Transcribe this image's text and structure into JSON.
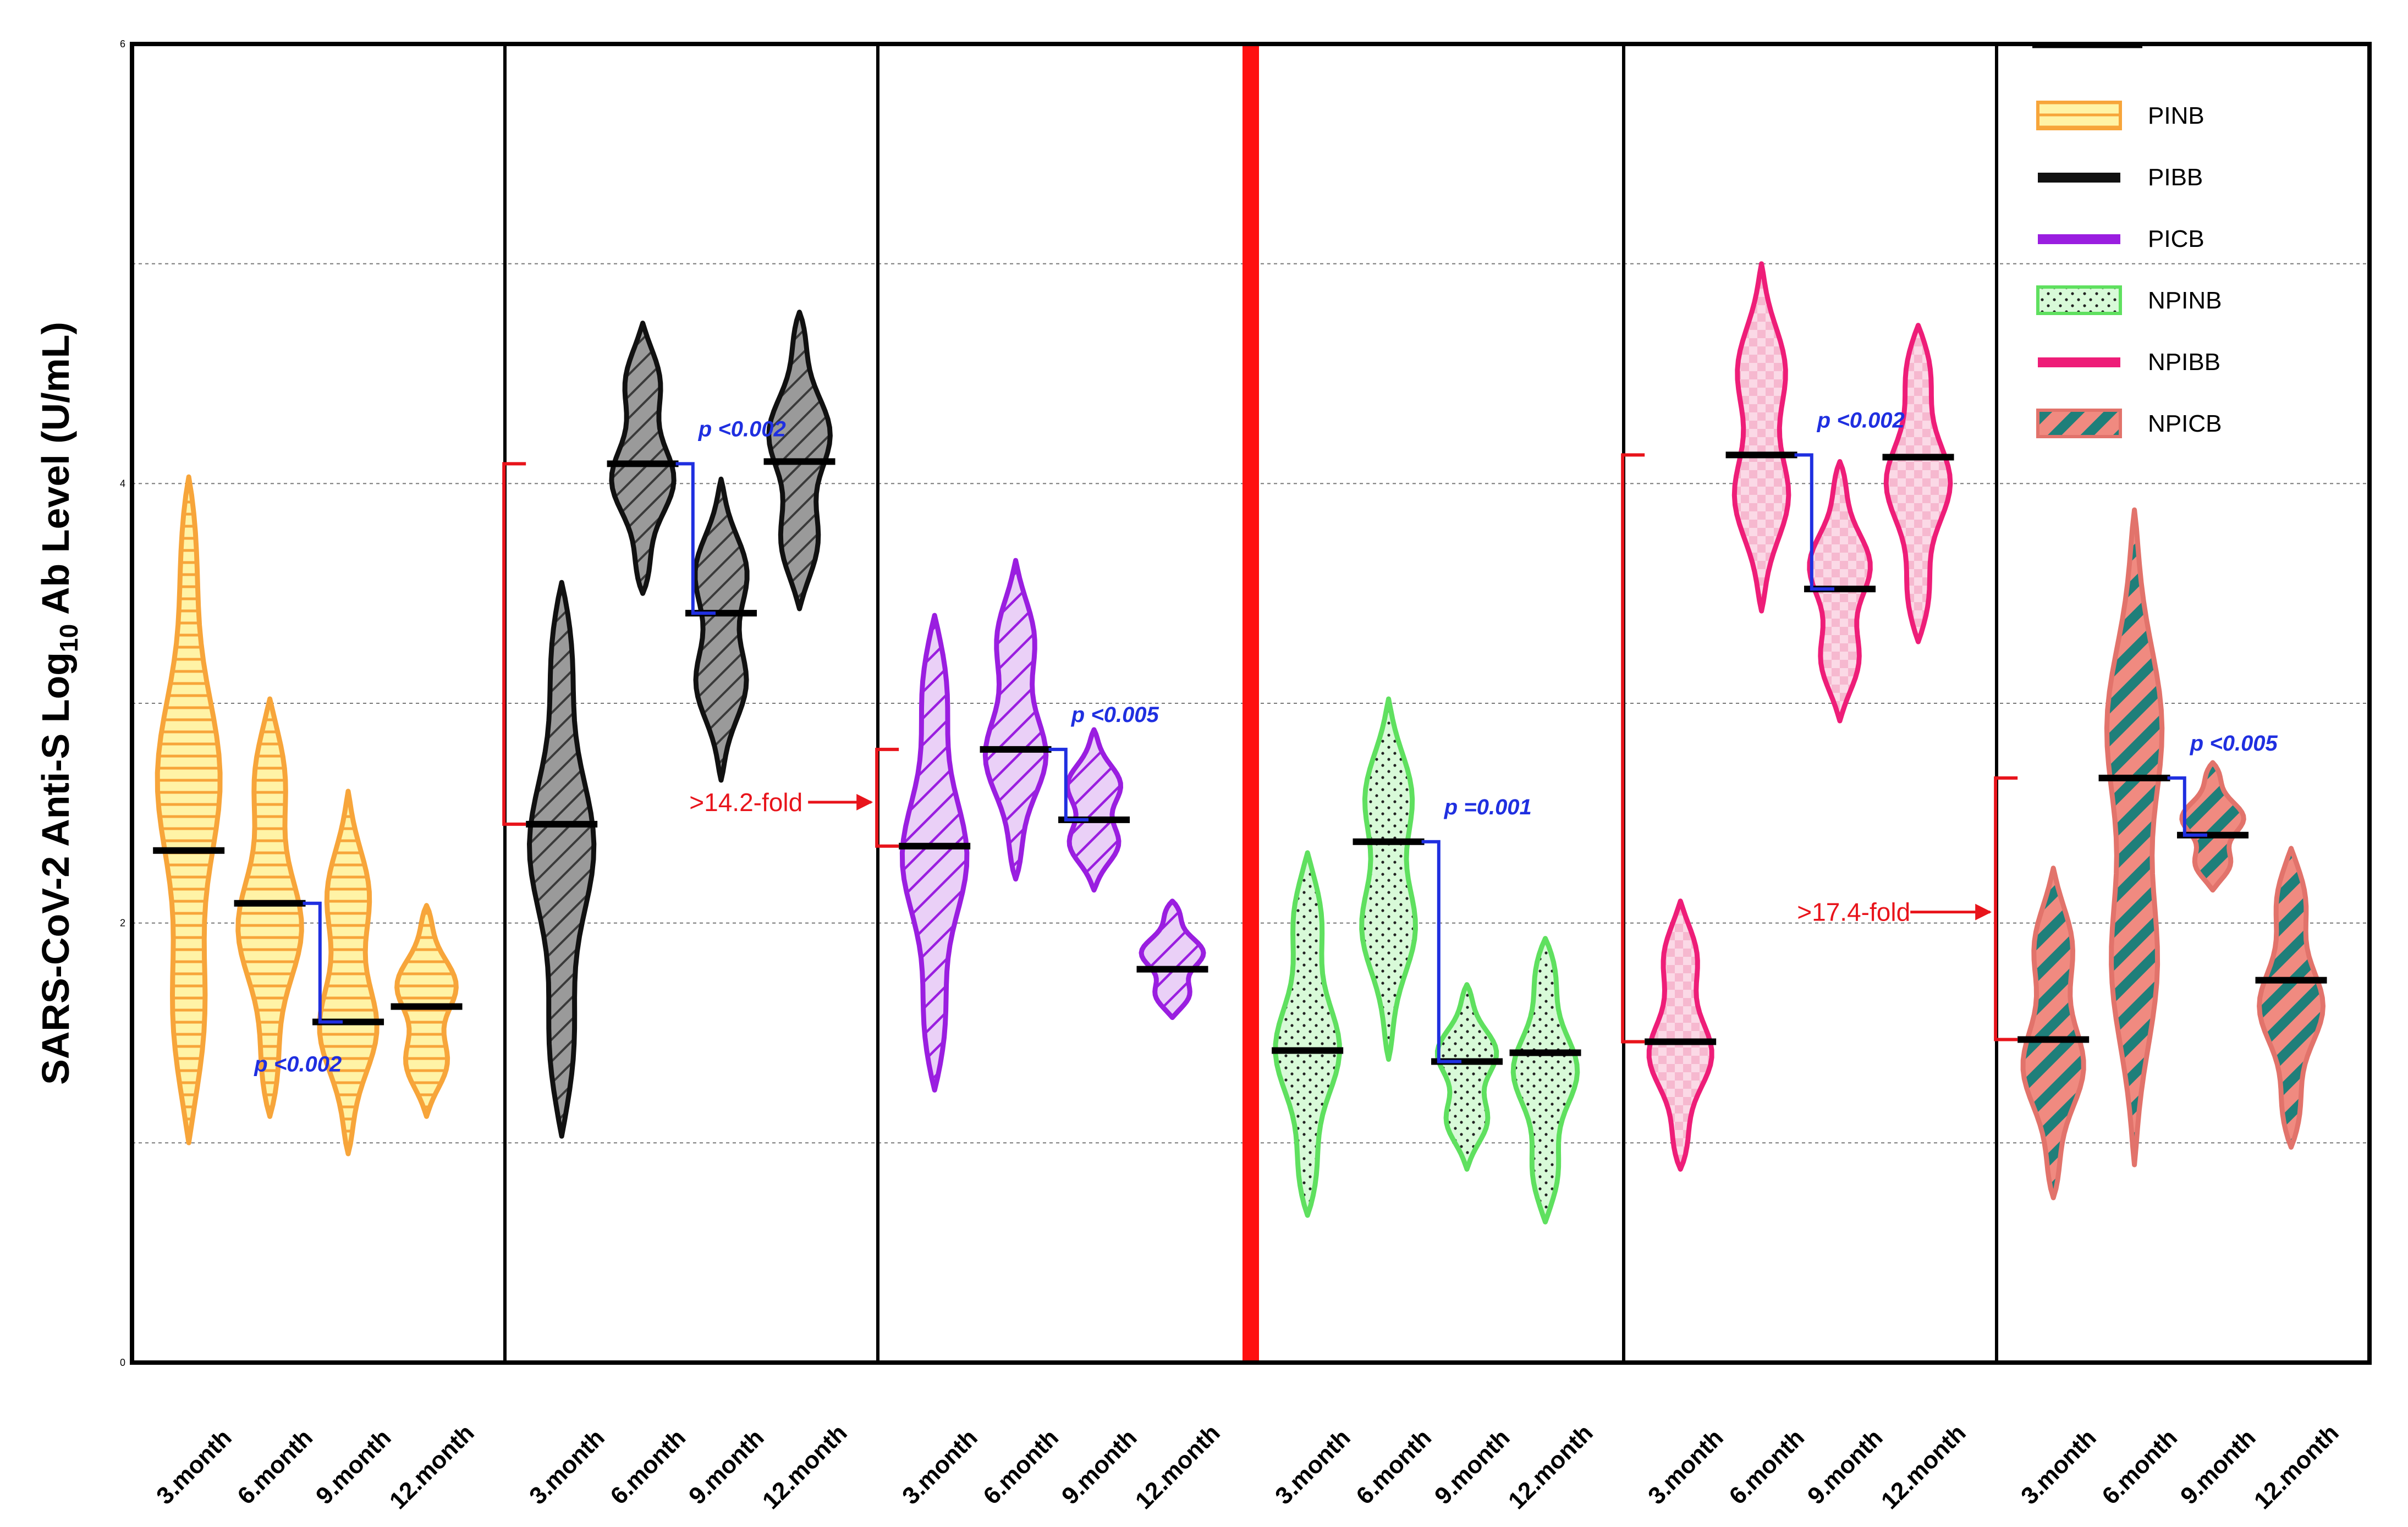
{
  "chart_data": {
    "type": "violin",
    "ylabel": "SARS-CoV-2  Anti-S Log10 Ab Level (U/mL)",
    "ylabel_main": "SARS-CoV-2  Anti-S Log",
    "ylabel_sub": "10",
    "ylabel_tail": " Ab Level (U/mL)",
    "ylim": [
      0,
      6
    ],
    "yticks": [
      "0",
      "2",
      "4",
      "6"
    ],
    "grid": true,
    "categories": [
      "3.month",
      "6.month",
      "9.month",
      "12.month"
    ],
    "colors": {
      "PINB": "#f7a53a",
      "PIBB": "#111111",
      "PICB": "#9a1ee0",
      "NPINB": "#5fe05f",
      "NPIBB": "#ee1d78",
      "NPICB": "#e2736b",
      "bracket": "#e8141b",
      "pbracket": "#1f2fe0",
      "divider": "#ff1010"
    },
    "series": [
      {
        "name": "PINB",
        "medians": [
          2.33,
          2.09,
          1.55,
          1.62
        ],
        "ranges": [
          [
            1.0,
            4.03
          ],
          [
            1.12,
            3.02
          ],
          [
            0.95,
            2.6
          ],
          [
            1.12,
            2.08
          ]
        ]
      },
      {
        "name": "PIBB",
        "medians": [
          2.45,
          4.09,
          3.41,
          4.1
        ],
        "ranges": [
          [
            1.03,
            3.55
          ],
          [
            3.5,
            4.73
          ],
          [
            2.65,
            4.02
          ],
          [
            3.43,
            4.78
          ]
        ]
      },
      {
        "name": "PICB",
        "medians": [
          2.35,
          2.79,
          2.47,
          1.79
        ],
        "ranges": [
          [
            1.24,
            3.4
          ],
          [
            2.2,
            3.65
          ],
          [
            2.15,
            2.88
          ],
          [
            1.57,
            2.1
          ]
        ]
      },
      {
        "name": "NPINB",
        "medians": [
          1.42,
          2.37,
          1.37,
          1.41
        ],
        "ranges": [
          [
            0.67,
            2.32
          ],
          [
            1.38,
            3.02
          ],
          [
            0.88,
            1.72
          ],
          [
            0.64,
            1.93
          ]
        ]
      },
      {
        "name": "NPIBB",
        "medians": [
          1.46,
          4.13,
          3.52,
          4.12
        ],
        "ranges": [
          [
            0.88,
            2.1
          ],
          [
            3.42,
            5.0
          ],
          [
            2.92,
            4.1
          ],
          [
            3.28,
            4.72
          ]
        ]
      },
      {
        "name": "NPICB",
        "medians": [
          1.47,
          2.66,
          2.4,
          1.74
        ],
        "ranges": [
          [
            0.75,
            2.25
          ],
          [
            0.9,
            3.88
          ],
          [
            2.15,
            2.73
          ],
          [
            0.98,
            2.34
          ]
        ]
      }
    ],
    "annotations": {
      "pvalues": [
        {
          "text": "p <0.002"
        },
        {
          "text": "p <0.002"
        },
        {
          "text": "p <0.005"
        },
        {
          "text": "p =0.001"
        },
        {
          "text": "p <0.002"
        },
        {
          "text": "p <0.005"
        }
      ],
      "folds": [
        {
          "text": ">14.2-fold"
        },
        {
          "text": ">17.4-fold"
        }
      ]
    },
    "legend": {
      "position": "top-right",
      "entries": [
        "PINB",
        "PIBB",
        "PICB",
        "NPINB",
        "NPIBB",
        "NPICB"
      ]
    }
  }
}
